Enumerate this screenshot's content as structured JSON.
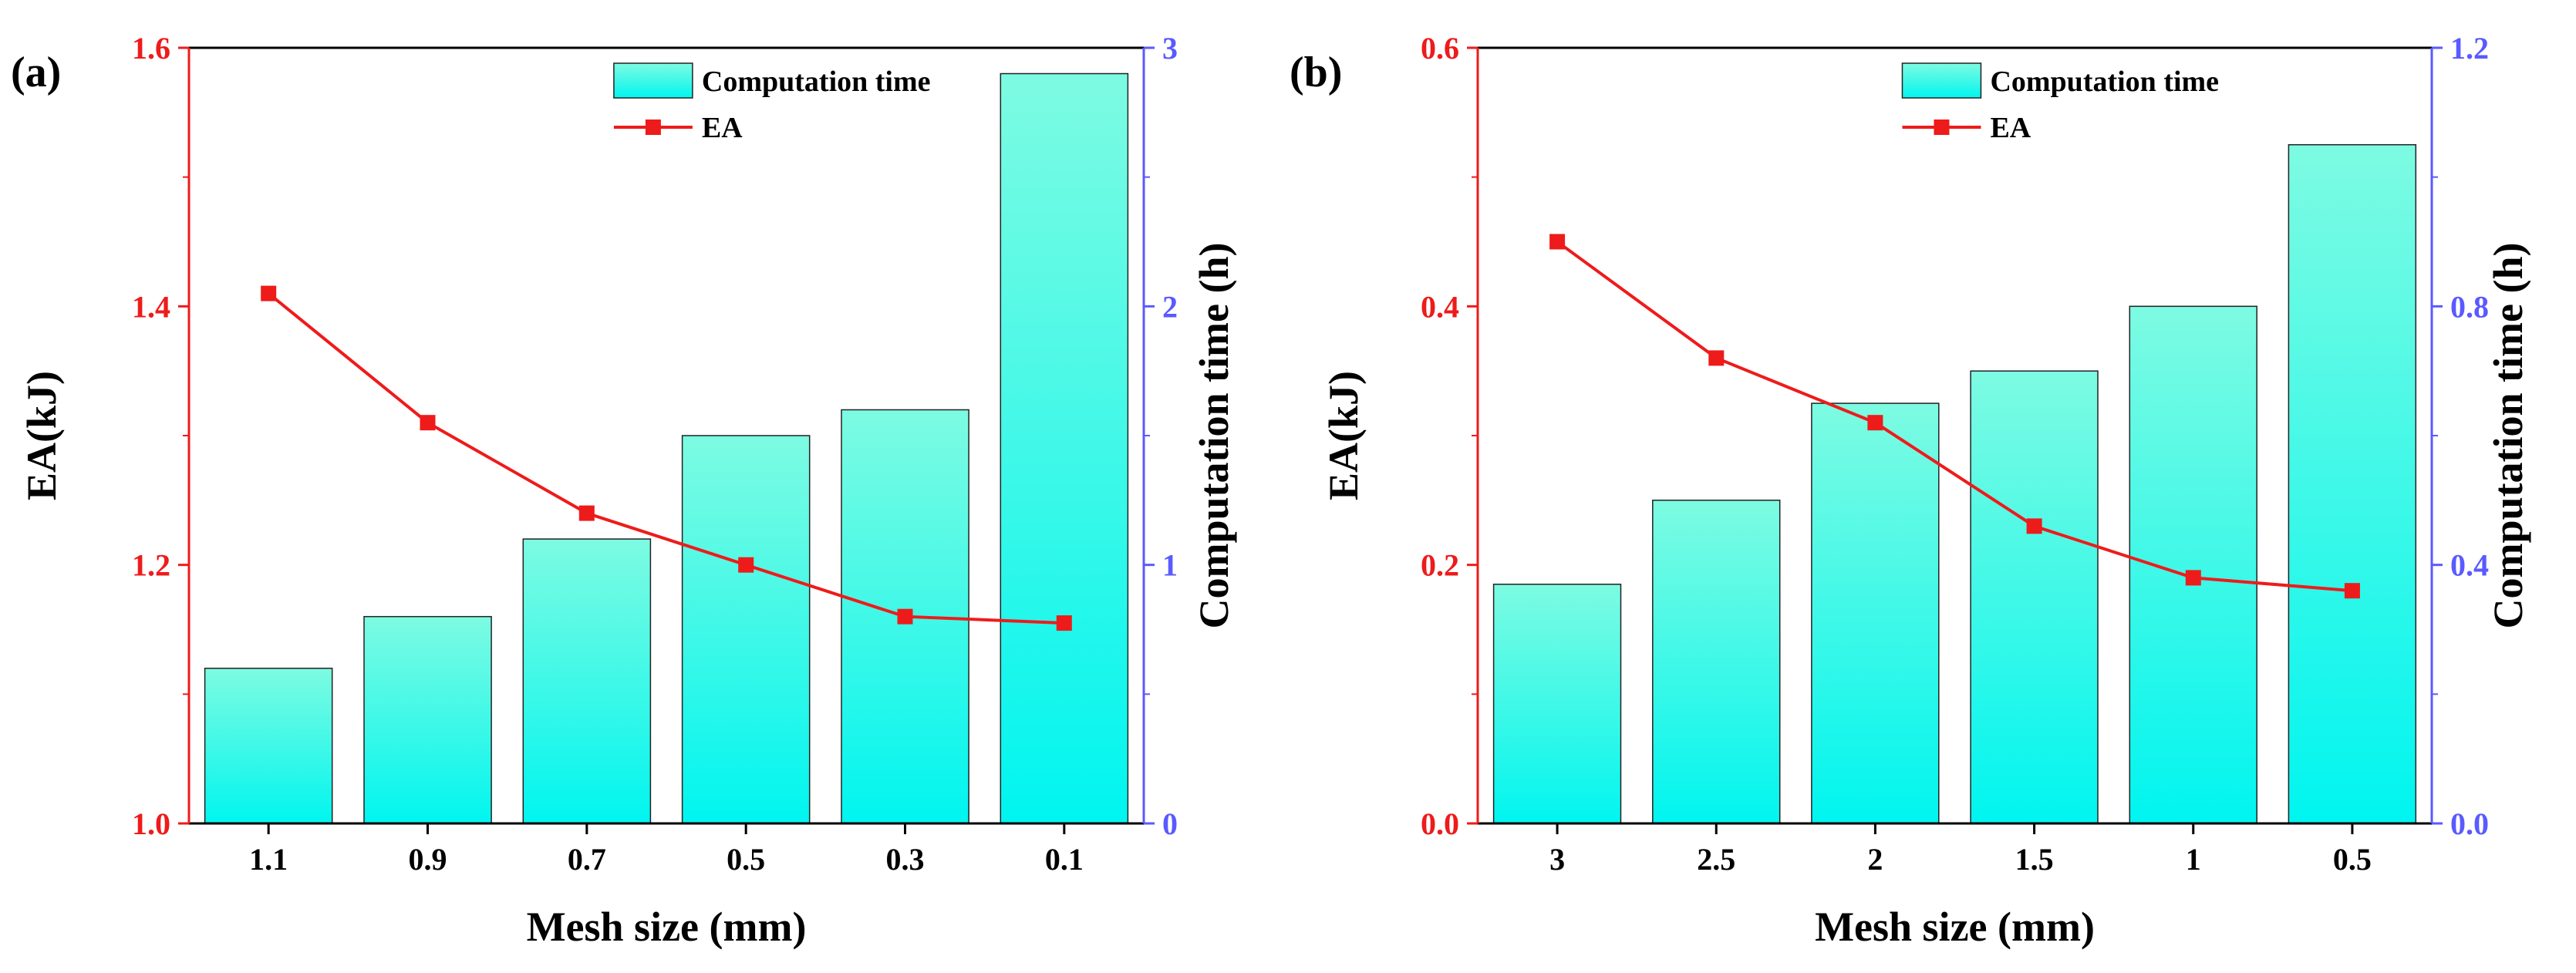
{
  "colors": {
    "left_axis": "#ee1b1b",
    "right_axis": "#5a5aff",
    "bar_top": "#7dfbe2",
    "bar_bottom": "#00f5f0",
    "line": "#ee1b1b",
    "frame": "#000000"
  },
  "chart_data": [
    {
      "type": "bar+line",
      "panel_label": "(a)",
      "title": "",
      "xlabel": "Mesh size (mm)",
      "ylabel_left": "EA(kJ)",
      "ylabel_right": "Computation time (h)",
      "categories": [
        "1.1",
        "0.9",
        "0.7",
        "0.5",
        "0.3",
        "0.1"
      ],
      "ylim_left": [
        1.0,
        1.6
      ],
      "yticks_left": [
        "1.0",
        "1.2",
        "1.4",
        "1.6"
      ],
      "ylim_right": [
        0,
        3
      ],
      "yticks_right": [
        "0",
        "1",
        "2",
        "3"
      ],
      "grid": false,
      "legend_position": "top-center",
      "series": [
        {
          "name": "Computation time",
          "kind": "bar",
          "axis": "right",
          "values": [
            0.6,
            0.8,
            1.1,
            1.5,
            1.6,
            2.9
          ]
        },
        {
          "name": "EA",
          "kind": "line",
          "axis": "left",
          "marker": "square",
          "values": [
            1.41,
            1.31,
            1.24,
            1.2,
            1.16,
            1.155
          ]
        }
      ]
    },
    {
      "type": "bar+line",
      "panel_label": "(b)",
      "title": "",
      "xlabel": "Mesh size (mm)",
      "ylabel_left": "EA(kJ)",
      "ylabel_right": "Computation time (h)",
      "categories": [
        "3",
        "2.5",
        "2",
        "1.5",
        "1",
        "0.5"
      ],
      "ylim_left": [
        0.0,
        0.6
      ],
      "yticks_left": [
        "0.0",
        "0.2",
        "0.4",
        "0.6"
      ],
      "ylim_right": [
        0.0,
        1.2
      ],
      "yticks_right": [
        "0.0",
        "0.4",
        "0.8",
        "1.2"
      ],
      "grid": false,
      "legend_position": "top-center",
      "series": [
        {
          "name": "Computation time",
          "kind": "bar",
          "axis": "right",
          "values": [
            0.37,
            0.5,
            0.65,
            0.7,
            0.8,
            1.05
          ]
        },
        {
          "name": "EA",
          "kind": "line",
          "axis": "left",
          "marker": "square",
          "values": [
            0.45,
            0.36,
            0.31,
            0.23,
            0.19,
            0.18
          ]
        }
      ]
    }
  ]
}
